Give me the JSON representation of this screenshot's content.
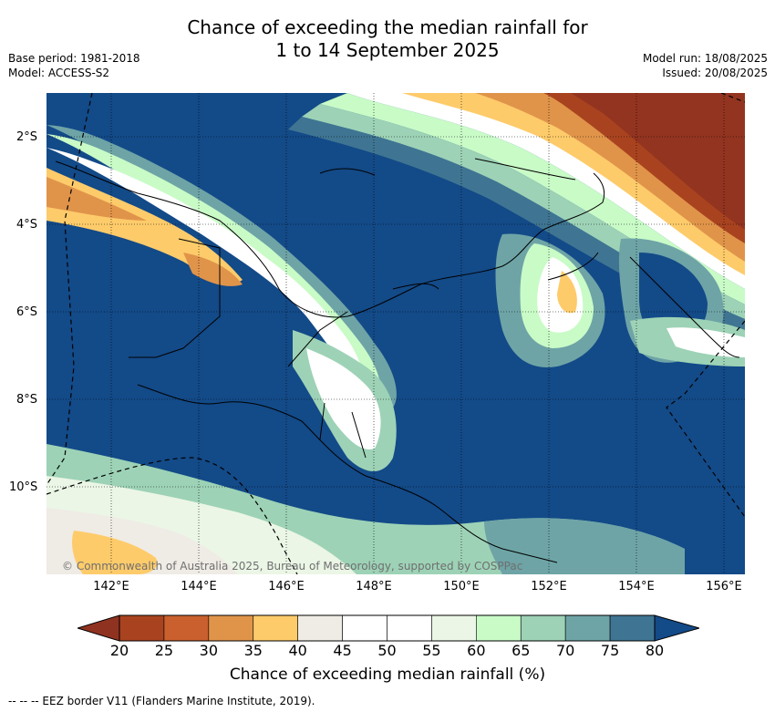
{
  "title": {
    "line1": "Chance of exceeding the median rainfall for",
    "line2": "1 to 14 September 2025"
  },
  "meta_left": {
    "base_period": "Base period: 1981-2018",
    "model": "Model: ACCESS-S2"
  },
  "meta_right": {
    "model_run": "Model run: 18/08/2025",
    "issued": "Issued: 20/08/2025"
  },
  "map": {
    "copyright": "© Commonwealth of Australia 2025, Bureau of Meteorology, supported by COSPPac",
    "lat_labels": [
      "2°S",
      "4°S",
      "6°S",
      "8°S",
      "10°S"
    ],
    "lon_labels": [
      "142°E",
      "144°E",
      "146°E",
      "148°E",
      "150°E",
      "152°E",
      "154°E",
      "156°E"
    ]
  },
  "colorbar": {
    "ticks": [
      "20",
      "25",
      "30",
      "35",
      "40",
      "45",
      "50",
      "55",
      "60",
      "65",
      "70",
      "75",
      "80"
    ],
    "colors": [
      "#a9431f",
      "#c9602d",
      "#e0944a",
      "#fecb6a",
      "#efebe5",
      "#ffffff",
      "#ffffff",
      "#ebf6e6",
      "#c9fbc7",
      "#9dd2b6",
      "#6ea4a6",
      "#3f7592"
    ],
    "under_color": "#8f3220",
    "over_color": "#134a88",
    "label": "Chance of exceeding median rainfall (%)"
  },
  "footnote": "-- -- -- EEZ border V11 (Flanders Marine Institute, 2019)."
}
